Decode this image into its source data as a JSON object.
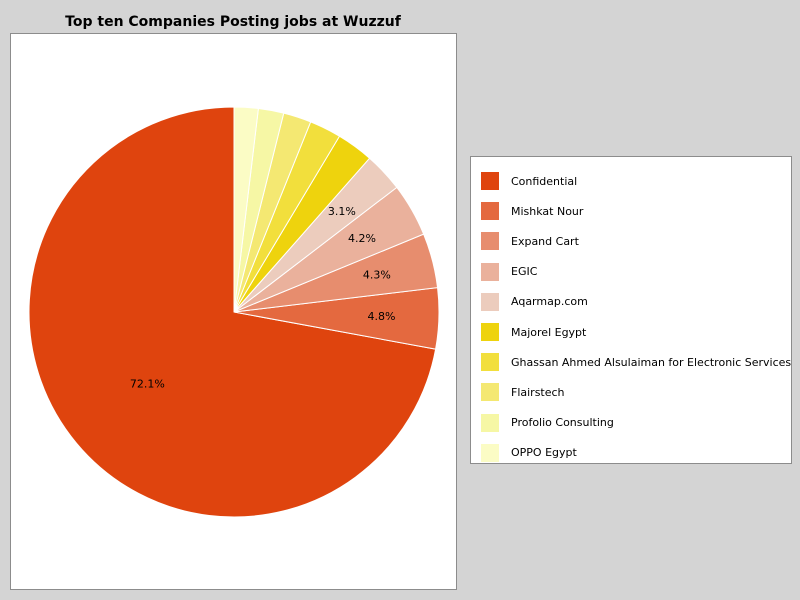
{
  "chart_data": {
    "type": "pie",
    "title": "Top ten Companies Posting jobs at Wuzzuf",
    "legend_position": "right",
    "slices": [
      {
        "name": "Confidential",
        "value": 72.1,
        "label": "72.1%",
        "color": "#df440e"
      },
      {
        "name": "Mishkat Nour",
        "value": 4.8,
        "label": "4.8%",
        "color": "#e4693f"
      },
      {
        "name": "Expand Cart",
        "value": 4.3,
        "label": "4.3%",
        "color": "#e78d6e"
      },
      {
        "name": "EGIC",
        "value": 4.2,
        "label": "4.2%",
        "color": "#eab19c"
      },
      {
        "name": "Aqarmap.com",
        "value": 3.1,
        "label": "3.1%",
        "color": "#ecccbd"
      },
      {
        "name": "Majorel Egypt",
        "value": 2.9,
        "label": "",
        "color": "#eed30d"
      },
      {
        "name": "Ghassan Ahmed Alsulaiman for Electronic Services",
        "value": 2.5,
        "label": "",
        "color": "#f2df3c"
      },
      {
        "name": "Flairstech",
        "value": 2.2,
        "label": "",
        "color": "#f4e872"
      },
      {
        "name": "Profolio Consulting",
        "value": 2.0,
        "label": "",
        "color": "#f6f7a5"
      },
      {
        "name": "OPPO Egypt",
        "value": 1.9,
        "label": "",
        "color": "#fbfcc5"
      }
    ]
  }
}
